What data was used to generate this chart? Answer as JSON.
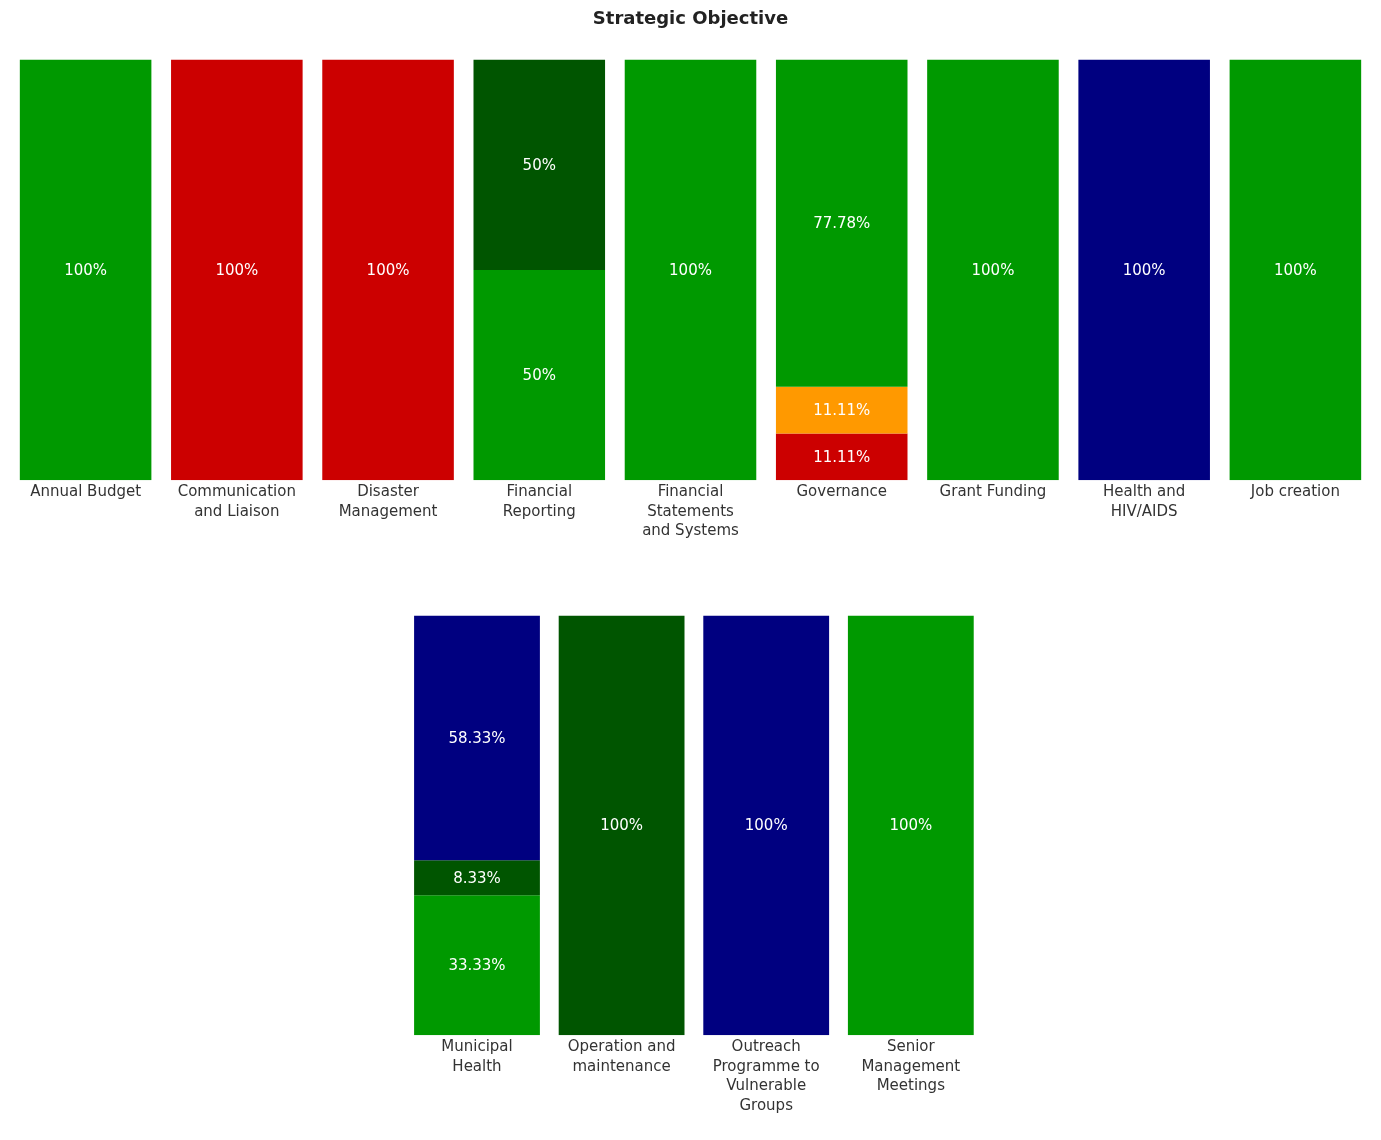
{
  "chart_data": [
    {
      "type": "bar",
      "title": "Strategic Objective",
      "stacked": true,
      "tick_labels": "x",
      "categories": [
        "Annual Budget",
        "Communication and Liaison",
        "Disaster Management",
        "Financial Reporting",
        "Financial Statements and Systems",
        "Governance",
        "Grant Funding",
        "Health and HIV/AIDS",
        "Job creation"
      ],
      "series": [
        {
          "color": "#cc0000",
          "values": [
            null,
            100,
            100,
            null,
            null,
            11.11,
            null,
            null,
            null
          ],
          "value_labels": [
            null,
            "100%",
            "100%",
            null,
            null,
            "11.11%",
            null,
            null,
            null
          ]
        },
        {
          "color": "#ff9900",
          "values": [
            null,
            null,
            null,
            null,
            null,
            11.11,
            null,
            null,
            null
          ],
          "value_labels": [
            null,
            null,
            null,
            null,
            null,
            "11.11%",
            null,
            null,
            null
          ]
        },
        {
          "color": "#009900",
          "values": [
            100,
            null,
            null,
            50,
            100,
            77.78,
            100,
            null,
            100
          ],
          "value_labels": [
            "100%",
            null,
            null,
            "50%",
            "100%",
            "77.78%",
            "100%",
            null,
            "100%"
          ]
        },
        {
          "color": "#005500",
          "values": [
            null,
            null,
            null,
            50,
            null,
            null,
            null,
            null,
            null
          ],
          "value_labels": [
            null,
            null,
            null,
            "50%",
            null,
            null,
            null,
            null,
            null
          ]
        },
        {
          "color": "#000080",
          "values": [
            null,
            null,
            null,
            null,
            null,
            null,
            null,
            100,
            null
          ],
          "value_labels": [
            null,
            null,
            null,
            null,
            null,
            null,
            null,
            "100%",
            null
          ]
        }
      ]
    },
    {
      "type": "bar",
      "stacked": true,
      "tick_labels": "x",
      "categories": [
        "Municipal Health",
        "Operation and maintenance",
        "Outreach Programme to Vulnerable Groups",
        "Senior Management Meetings"
      ],
      "series": [
        {
          "color": "#009900",
          "values": [
            33.33,
            null,
            null,
            100
          ],
          "value_labels": [
            "33.33%",
            null,
            null,
            "100%"
          ]
        },
        {
          "color": "#005500",
          "values": [
            8.33,
            100,
            null,
            null
          ],
          "value_labels": [
            "8.33%",
            "100%",
            null,
            null
          ]
        },
        {
          "color": "#000080",
          "values": [
            58.33,
            null,
            100,
            null
          ],
          "value_labels": [
            "58.33%",
            null,
            "100%",
            null
          ]
        }
      ]
    }
  ]
}
